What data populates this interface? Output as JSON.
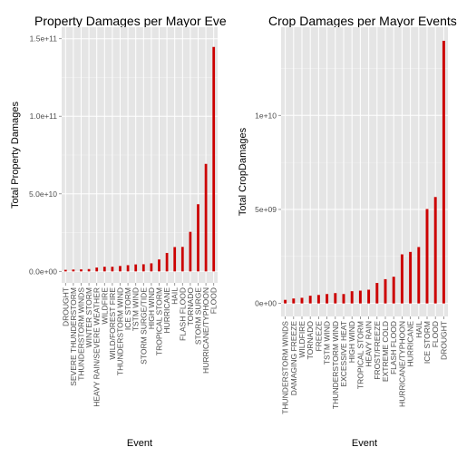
{
  "chart_data": [
    {
      "type": "bar",
      "title": "Property Damages per Mayor Eve",
      "xlabel": "Event",
      "ylabel": "Total Property Damages",
      "ylim": [
        0,
        150000000000
      ],
      "yticks": [
        0,
        50000000000,
        100000000000,
        150000000000
      ],
      "ytick_labels": [
        "0.0e+00",
        "5.0e+10",
        "1.0e+11",
        "1.5e+11"
      ],
      "grid": true,
      "bar_color": "#cc0000",
      "panel_color": "#e5e5e5",
      "categories": [
        "DROUGHT",
        "SEVERE THUNDERSTORM",
        "THUNDERSTORM WINDS",
        "WINTER STORM",
        "HEAVY RAIN/SEVERE WEATHER",
        "WILDFIRE",
        "WILD/FOREST FIRE",
        "THUNDERSTORM WIND",
        "ICE STORM",
        "TSTM WIND",
        "STORM SURGE/TIDE",
        "HIGH WIND",
        "TROPICAL STORM",
        "HURRICANE",
        "HAIL",
        "FLASH FLOOD",
        "TORNADO",
        "STORM SURGE",
        "HURRICANE/TYPHOON",
        "FLOOD"
      ],
      "values": [
        1000000000,
        1200000000,
        1300000000,
        1500000000,
        2500000000,
        3000000000,
        3000000000,
        3500000000,
        4000000000,
        4500000000,
        4600000000,
        5200000000,
        7700000000,
        11900000000,
        15700000000,
        15800000000,
        25500000000,
        43300000000,
        69300000000,
        144700000000
      ]
    },
    {
      "type": "bar",
      "title": "Crop Damages per Mayor Events",
      "xlabel": "Event",
      "ylabel": "Total CropDamages",
      "ylim": [
        0,
        14000000000
      ],
      "yticks": [
        0,
        5000000000,
        10000000000
      ],
      "ytick_labels": [
        "0e+00",
        "5e+09",
        "1e+10"
      ],
      "grid": true,
      "bar_color": "#cc0000",
      "panel_color": "#e5e5e5",
      "categories": [
        "THUNDERSTORM WINDS",
        "DAMAGING FREEZE",
        "WILDFIRE",
        "TORNADO",
        "FREEZE",
        "TSTM WIND",
        "THUNDERSTORM WIND",
        "EXCESSIVE HEAT",
        "HIGH WIND",
        "TROPICAL STORM",
        "HEAVY RAIN",
        "FROST/FREEZE",
        "EXTREME COLD",
        "FLASH FLOOD",
        "HURRICANE/TYPHOON",
        "HURRICANE",
        "HAIL",
        "ICE STORM",
        "FLOOD",
        "DROUGHT"
      ],
      "values": [
        190000000,
        262000000,
        300000000,
        410000000,
        450000000,
        500000000,
        550000000,
        500000000,
        650000000,
        680000000,
        730000000,
        1090000000,
        1290000000,
        1420000000,
        2610000000,
        2740000000,
        3000000000,
        5020000000,
        5660000000,
        13970000000
      ]
    }
  ]
}
